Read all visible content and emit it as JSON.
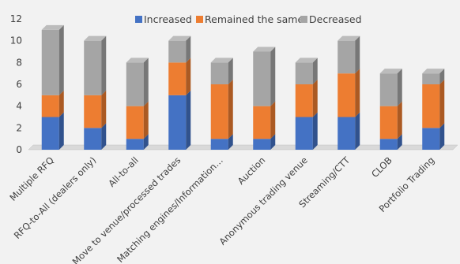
{
  "chart_data": {
    "type": "bar",
    "stacked": true,
    "three_d": true,
    "title": "",
    "xlabel": "",
    "ylabel": "",
    "ylim": [
      0,
      12
    ],
    "yticks": [
      0,
      2,
      4,
      6,
      8,
      10,
      12
    ],
    "grid": false,
    "legend_position": "top",
    "categories": [
      "Multiple RFQ",
      "RFQ-to-All (dealers only)",
      "All-to-all",
      "Move to venue/processed trades",
      "Matching engines/Information…",
      "Auction",
      "Anonymous trading venue",
      "Streaming/CTT",
      "CLOB",
      "Portfolio Trading"
    ],
    "series": [
      {
        "name": "Increased",
        "color": "#4472c4",
        "values": [
          3,
          2,
          1,
          5,
          1,
          1,
          3,
          3,
          1,
          2
        ]
      },
      {
        "name": "Remained the same",
        "color": "#ed7d31",
        "values": [
          2,
          3,
          3,
          3,
          5,
          3,
          3,
          4,
          3,
          4
        ]
      },
      {
        "name": "Decreased",
        "color": "#a5a5a5",
        "values": [
          6,
          5,
          4,
          2,
          2,
          5,
          2,
          3,
          3,
          1
        ]
      }
    ]
  }
}
